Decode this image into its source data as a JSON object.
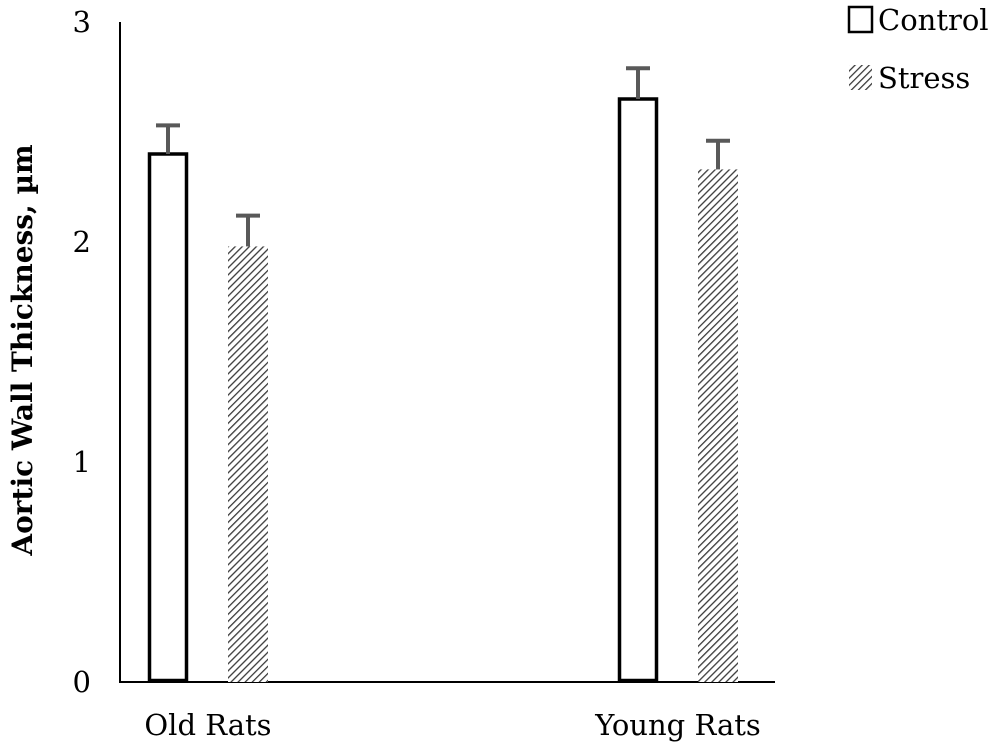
{
  "chart_data": {
    "type": "bar",
    "ylabel": "Aortic Wall Thickness, µm",
    "xlabel": "",
    "ylim": [
      0,
      3
    ],
    "yticks": [
      0,
      1,
      2,
      3
    ],
    "categories": [
      "Old Rats",
      "Young Rats"
    ],
    "series": [
      {
        "name": "Control",
        "values": [
          2.4,
          2.65
        ],
        "errors": [
          0.13,
          0.14
        ],
        "pattern": "solid-outline"
      },
      {
        "name": "Stress",
        "values": [
          1.98,
          2.33
        ],
        "errors": [
          0.14,
          0.13
        ],
        "pattern": "hatched"
      }
    ],
    "legend_position": "top-right",
    "grid": false,
    "colors": {
      "bar_outline": "#000000",
      "error_bar": "#595959",
      "hatch": "#3a3a3a",
      "axis": "#000000"
    }
  }
}
